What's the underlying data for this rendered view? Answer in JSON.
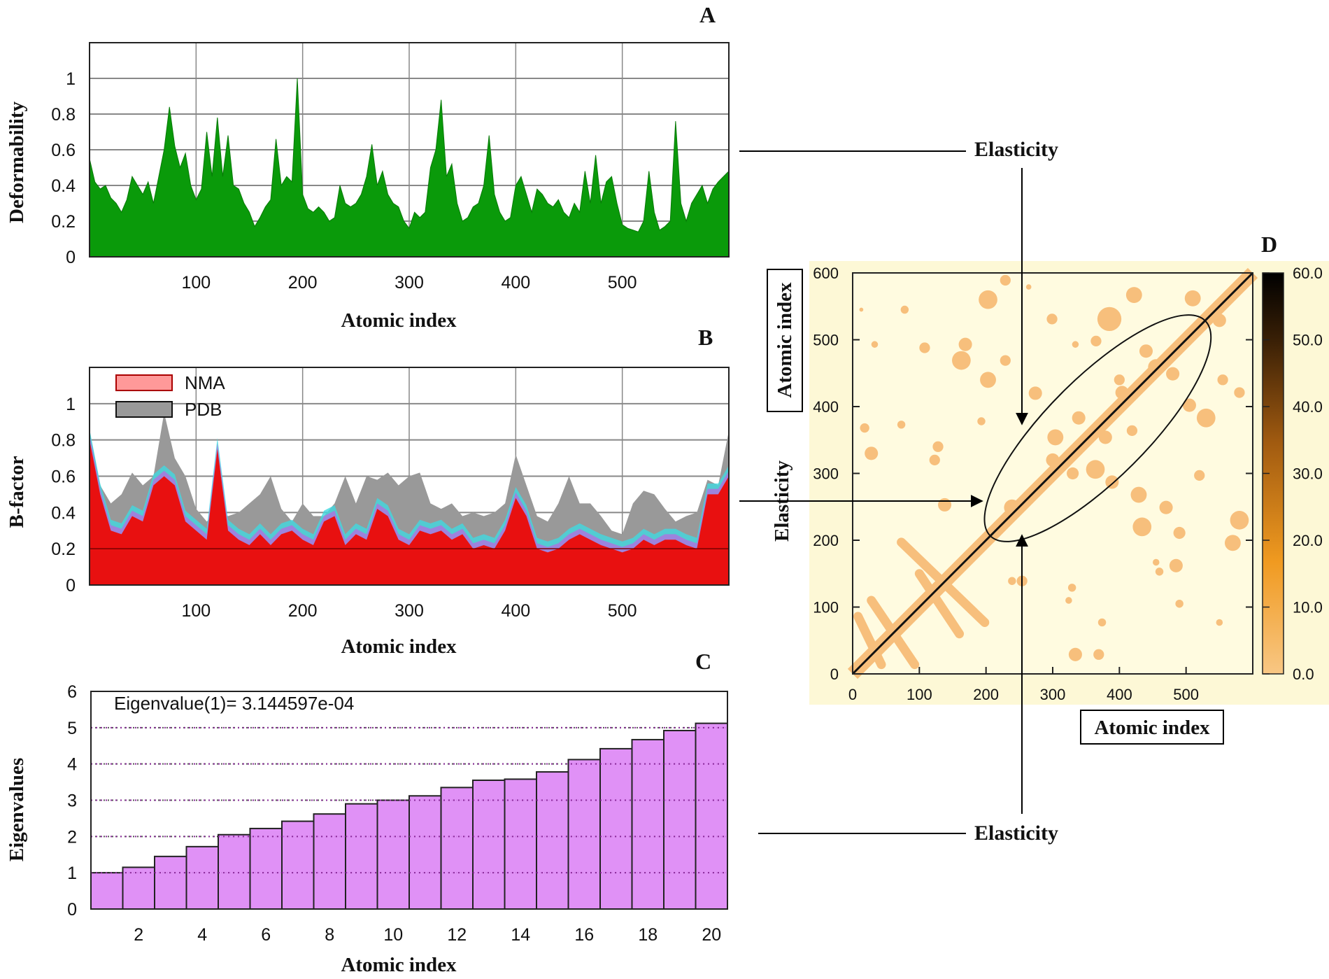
{
  "panels": {
    "a": "A",
    "b": "B",
    "c": "C",
    "d": "D"
  },
  "annotations": {
    "elasticity_top": "Elasticity",
    "elasticity_bottom": "Elasticity",
    "elasticity_side": "Elasticity"
  },
  "chart_data": [
    {
      "id": "A",
      "type": "area",
      "xlabel": "Atomic index",
      "ylabel": "Deformability",
      "xlim": [
        0,
        600
      ],
      "ylim": [
        0,
        1.2
      ],
      "xticks": [
        100,
        200,
        300,
        400,
        500
      ],
      "yticks": [
        0,
        0.2,
        0.4,
        0.6,
        0.8,
        1
      ],
      "grid": true,
      "color": "#0a9a0a",
      "x_step": 5,
      "values": [
        0.55,
        0.42,
        0.38,
        0.4,
        0.33,
        0.3,
        0.25,
        0.32,
        0.45,
        0.4,
        0.35,
        0.42,
        0.3,
        0.45,
        0.6,
        0.84,
        0.62,
        0.5,
        0.58,
        0.4,
        0.32,
        0.38,
        0.7,
        0.45,
        0.78,
        0.45,
        0.68,
        0.4,
        0.38,
        0.3,
        0.25,
        0.17,
        0.22,
        0.28,
        0.32,
        0.66,
        0.4,
        0.45,
        0.42,
        1.0,
        0.35,
        0.27,
        0.25,
        0.28,
        0.25,
        0.2,
        0.22,
        0.4,
        0.3,
        0.28,
        0.3,
        0.35,
        0.45,
        0.63,
        0.4,
        0.48,
        0.35,
        0.3,
        0.28,
        0.2,
        0.16,
        0.25,
        0.22,
        0.25,
        0.5,
        0.6,
        0.88,
        0.45,
        0.52,
        0.3,
        0.2,
        0.22,
        0.28,
        0.3,
        0.4,
        0.68,
        0.35,
        0.25,
        0.2,
        0.22,
        0.4,
        0.45,
        0.35,
        0.25,
        0.38,
        0.35,
        0.3,
        0.28,
        0.32,
        0.25,
        0.22,
        0.3,
        0.25,
        0.48,
        0.3,
        0.57,
        0.3,
        0.42,
        0.45,
        0.3,
        0.18,
        0.16,
        0.15,
        0.14,
        0.2,
        0.48,
        0.25,
        0.15,
        0.17,
        0.2,
        0.76,
        0.3,
        0.2,
        0.3,
        0.35,
        0.4,
        0.3,
        0.38,
        0.42,
        0.45,
        0.48
      ]
    },
    {
      "id": "B",
      "type": "area",
      "xlabel": "Atomic index",
      "ylabel": "B-factor",
      "xlim": [
        0,
        600
      ],
      "ylim": [
        0,
        1.2
      ],
      "xticks": [
        100,
        200,
        300,
        400,
        500
      ],
      "yticks": [
        0,
        0.2,
        0.4,
        0.6,
        0.8,
        1
      ],
      "grid": true,
      "legend": "top-left",
      "x_step": 10,
      "series": [
        {
          "name": "PDB",
          "color": "#999999",
          "values": [
            0.85,
            0.55,
            0.45,
            0.5,
            0.62,
            0.55,
            0.6,
            0.95,
            0.7,
            0.6,
            0.42,
            0.35,
            0.4,
            0.38,
            0.4,
            0.45,
            0.5,
            0.6,
            0.42,
            0.35,
            0.45,
            0.38,
            0.38,
            0.45,
            0.6,
            0.45,
            0.6,
            0.58,
            0.62,
            0.55,
            0.6,
            0.62,
            0.45,
            0.42,
            0.45,
            0.38,
            0.4,
            0.38,
            0.4,
            0.45,
            0.72,
            0.55,
            0.38,
            0.35,
            0.45,
            0.6,
            0.45,
            0.45,
            0.38,
            0.3,
            0.28,
            0.45,
            0.52,
            0.5,
            0.42,
            0.35,
            0.38,
            0.4,
            0.58,
            0.55,
            0.85
          ]
        },
        {
          "name": "NMA",
          "color": "#e81010",
          "values": [
            0.8,
            0.5,
            0.3,
            0.28,
            0.38,
            0.35,
            0.55,
            0.6,
            0.55,
            0.35,
            0.3,
            0.25,
            0.75,
            0.3,
            0.25,
            0.22,
            0.28,
            0.22,
            0.28,
            0.3,
            0.25,
            0.22,
            0.35,
            0.38,
            0.22,
            0.28,
            0.25,
            0.42,
            0.38,
            0.25,
            0.22,
            0.3,
            0.28,
            0.3,
            0.25,
            0.28,
            0.2,
            0.22,
            0.2,
            0.3,
            0.48,
            0.38,
            0.2,
            0.18,
            0.2,
            0.25,
            0.28,
            0.25,
            0.22,
            0.2,
            0.18,
            0.2,
            0.25,
            0.22,
            0.25,
            0.25,
            0.22,
            0.2,
            0.5,
            0.5,
            0.6
          ]
        }
      ]
    },
    {
      "id": "C",
      "type": "bar",
      "xlabel": "Atomic index",
      "ylabel": "Eigenvalues",
      "annotation": "Eigenvalue(1)= 3.144597e-04",
      "xlim": [
        0.5,
        20.5
      ],
      "ylim": [
        0,
        6
      ],
      "xticks": [
        2,
        4,
        6,
        8,
        10,
        12,
        14,
        16,
        18,
        20
      ],
      "yticks": [
        0,
        1,
        2,
        3,
        4,
        5,
        6
      ],
      "grid": true,
      "color": "#dd88f5",
      "categories": [
        1,
        2,
        3,
        4,
        5,
        6,
        7,
        8,
        9,
        10,
        11,
        12,
        13,
        14,
        15,
        16,
        17,
        18,
        19,
        20
      ],
      "values": [
        1.0,
        1.15,
        1.45,
        1.72,
        2.05,
        2.22,
        2.42,
        2.62,
        2.9,
        3.0,
        3.12,
        3.35,
        3.55,
        3.58,
        3.78,
        4.12,
        4.42,
        4.67,
        4.92,
        5.12
      ]
    },
    {
      "id": "D",
      "type": "heatmap",
      "xlabel": "Atomic index",
      "ylabel": "Atomic index",
      "xlim": [
        0,
        600
      ],
      "ylim": [
        0,
        600
      ],
      "xticks": [
        0,
        100,
        200,
        300,
        400,
        500
      ],
      "yticks": [
        0,
        100,
        200,
        300,
        400,
        500,
        600
      ],
      "colorbar": {
        "range": [
          0,
          60
        ],
        "ticks": [
          "0.0",
          "10.0",
          "20.0",
          "30.0",
          "40.0",
          "50.0",
          "60.0"
        ],
        "colors": [
          "#f8c784",
          "#f09a20",
          "#a05a10",
          "#3a2006",
          "#000000"
        ]
      },
      "background_color": "#fffbe0",
      "contact_color": "#f7bf7c",
      "highlight_region": {
        "from": [
          225,
          225
        ],
        "to": [
          510,
          510
        ]
      },
      "strips": [
        [
          28,
          110,
          93,
          14
        ],
        [
          8,
          86,
          43,
          14
        ],
        [
          73,
          197,
          198,
          77
        ],
        [
          100,
          150,
          160,
          60
        ]
      ],
      "contacts": [
        [
          254,
          139,
          8
        ],
        [
          329,
          129,
          6
        ],
        [
          334,
          29,
          10
        ],
        [
          369,
          29,
          8
        ],
        [
          374,
          77,
          6
        ],
        [
          550,
          77,
          5
        ],
        [
          460,
          153,
          6
        ],
        [
          455,
          167,
          5
        ],
        [
          485,
          162,
          10
        ],
        [
          570,
          196,
          12
        ],
        [
          434,
          220,
          14
        ],
        [
          490,
          211,
          9
        ],
        [
          389,
          287,
          10
        ],
        [
          429,
          268,
          12
        ],
        [
          470,
          249,
          10
        ],
        [
          520,
          297,
          8
        ],
        [
          580,
          230,
          14
        ],
        [
          530,
          383,
          14
        ],
        [
          505,
          402,
          10
        ],
        [
          580,
          421,
          8
        ],
        [
          555,
          440,
          8
        ],
        [
          510,
          562,
          12
        ],
        [
          550,
          529,
          10
        ],
        [
          422,
          567,
          12
        ],
        [
          385,
          531,
          18
        ],
        [
          365,
          498,
          8
        ],
        [
          334,
          493,
          5
        ],
        [
          299,
          531,
          8
        ],
        [
          264,
          579,
          4
        ],
        [
          203,
          560,
          14
        ],
        [
          229,
          589,
          8
        ],
        [
          169,
          493,
          10
        ],
        [
          108,
          488,
          8
        ],
        [
          163,
          469,
          14
        ],
        [
          203,
          440,
          12
        ],
        [
          229,
          469,
          8
        ],
        [
          274,
          420,
          10
        ],
        [
          78,
          545,
          6
        ],
        [
          13,
          545,
          3
        ],
        [
          33,
          493,
          5
        ],
        [
          18,
          368,
          7
        ],
        [
          73,
          373,
          6
        ],
        [
          28,
          330,
          10
        ],
        [
          128,
          340,
          8
        ],
        [
          123,
          320,
          8
        ],
        [
          138,
          253,
          10
        ],
        [
          193,
          378,
          6
        ],
        [
          239,
          139,
          6
        ],
        [
          324,
          110,
          5
        ],
        [
          490,
          105,
          6
        ],
        [
          304,
          354,
          12
        ],
        [
          339,
          383,
          10
        ],
        [
          364,
          306,
          14
        ],
        [
          404,
          421,
          10
        ],
        [
          455,
          459,
          12
        ],
        [
          480,
          449,
          10
        ],
        [
          419,
          364,
          8
        ],
        [
          239,
          249,
          12
        ],
        [
          440,
          483,
          10
        ],
        [
          379,
          354,
          10
        ],
        [
          300,
          320,
          10
        ],
        [
          330,
          300,
          9
        ],
        [
          400,
          440,
          8
        ]
      ]
    }
  ]
}
